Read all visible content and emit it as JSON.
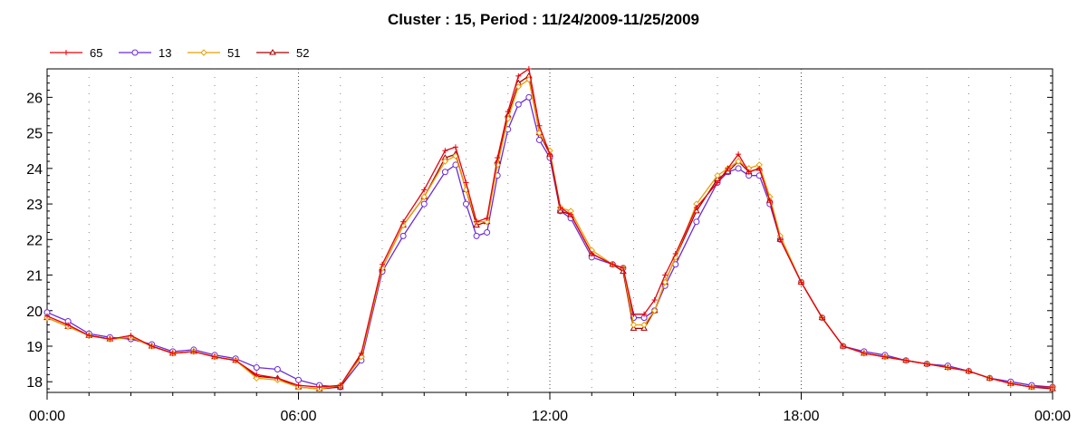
{
  "chart_data": {
    "type": "line",
    "title": "Cluster : 15, Period : 11/24/2009-11/25/2009",
    "xlabel": "",
    "ylabel": "",
    "x_ticks": [
      "00:00",
      "06:00",
      "12:00",
      "18:00",
      "00:00"
    ],
    "xlim_hours": [
      0,
      24
    ],
    "y_ticks": [
      18,
      19,
      20,
      21,
      22,
      23,
      24,
      25,
      26
    ],
    "ylim": [
      17.7,
      26.8
    ],
    "grid": "vertical dotted",
    "legend_position": "top-left",
    "x_hours": [
      0,
      0.5,
      1,
      1.5,
      2,
      2.5,
      3,
      3.5,
      4,
      4.5,
      5,
      5.5,
      6,
      6.5,
      7,
      7.5,
      8,
      8.5,
      9,
      9.5,
      9.75,
      10,
      10.25,
      10.5,
      10.75,
      11,
      11.25,
      11.5,
      11.75,
      12,
      12.25,
      12.5,
      13,
      13.5,
      13.75,
      14,
      14.25,
      14.5,
      14.75,
      15,
      15.5,
      16,
      16.25,
      16.5,
      16.75,
      17,
      17.25,
      17.5,
      18,
      18.5,
      19,
      19.5,
      20,
      20.5,
      21,
      21.5,
      22,
      22.5,
      23,
      23.5,
      24
    ],
    "series": [
      {
        "name": "65",
        "color": "#e8000b",
        "marker": "plus",
        "values": [
          19.85,
          19.6,
          19.3,
          19.2,
          19.3,
          19.0,
          18.8,
          18.85,
          18.7,
          18.6,
          18.2,
          18.1,
          17.9,
          17.85,
          17.9,
          18.8,
          21.3,
          22.5,
          23.4,
          24.5,
          24.6,
          23.6,
          22.5,
          22.6,
          24.3,
          25.6,
          26.6,
          26.8,
          25.2,
          24.4,
          22.9,
          22.7,
          21.6,
          21.3,
          21.2,
          19.9,
          19.9,
          20.3,
          21.0,
          21.6,
          22.9,
          23.6,
          24.0,
          24.4,
          23.9,
          24.0,
          23.1,
          22.0,
          20.8,
          19.8,
          19.0,
          18.8,
          18.7,
          18.6,
          18.5,
          18.4,
          18.3,
          18.1,
          17.95,
          17.85,
          17.85
        ]
      },
      {
        "name": "13",
        "color": "#6a2bd8",
        "marker": "circle",
        "values": [
          19.95,
          19.7,
          19.35,
          19.25,
          19.2,
          19.05,
          18.85,
          18.9,
          18.75,
          18.65,
          18.4,
          18.35,
          18.05,
          17.9,
          17.85,
          18.6,
          21.1,
          22.1,
          23.0,
          23.9,
          24.1,
          23.0,
          22.1,
          22.2,
          23.8,
          25.1,
          25.8,
          26.0,
          24.8,
          24.3,
          22.8,
          22.6,
          21.5,
          21.3,
          21.2,
          19.8,
          19.8,
          20.0,
          20.7,
          21.3,
          22.5,
          23.6,
          23.9,
          24.0,
          23.8,
          23.8,
          23.0,
          22.0,
          20.8,
          19.8,
          19.0,
          18.85,
          18.75,
          18.6,
          18.5,
          18.45,
          18.3,
          18.1,
          18.0,
          17.9,
          17.85
        ]
      },
      {
        "name": "51",
        "color": "#e8a000",
        "marker": "diamond",
        "values": [
          19.8,
          19.55,
          19.3,
          19.2,
          19.25,
          19.0,
          18.8,
          18.85,
          18.7,
          18.6,
          18.1,
          18.05,
          17.85,
          17.8,
          17.9,
          18.7,
          21.2,
          22.4,
          23.2,
          24.2,
          24.35,
          23.4,
          22.5,
          22.5,
          24.1,
          25.4,
          26.3,
          26.5,
          25.0,
          24.5,
          22.9,
          22.8,
          21.7,
          21.3,
          21.2,
          19.6,
          19.6,
          20.0,
          20.8,
          21.5,
          23.0,
          23.8,
          24.0,
          24.2,
          24.0,
          24.1,
          23.2,
          22.1,
          20.8,
          19.8,
          19.0,
          18.8,
          18.7,
          18.6,
          18.5,
          18.4,
          18.3,
          18.1,
          17.95,
          17.85,
          17.85
        ]
      },
      {
        "name": "52",
        "color": "#a80000",
        "marker": "triangle",
        "values": [
          19.8,
          19.55,
          19.3,
          19.2,
          19.25,
          19.0,
          18.8,
          18.85,
          18.7,
          18.6,
          18.15,
          18.1,
          17.85,
          17.8,
          17.85,
          18.75,
          21.2,
          22.4,
          23.2,
          24.3,
          24.4,
          23.4,
          22.4,
          22.5,
          24.2,
          25.5,
          26.4,
          26.6,
          25.0,
          24.4,
          22.8,
          22.7,
          21.6,
          21.3,
          21.1,
          19.5,
          19.5,
          20.0,
          20.8,
          21.5,
          22.8,
          23.7,
          23.9,
          24.2,
          23.9,
          24.0,
          23.1,
          22.0,
          20.8,
          19.8,
          19.0,
          18.8,
          18.7,
          18.6,
          18.5,
          18.4,
          18.3,
          18.1,
          17.95,
          17.85,
          17.8
        ]
      }
    ]
  }
}
